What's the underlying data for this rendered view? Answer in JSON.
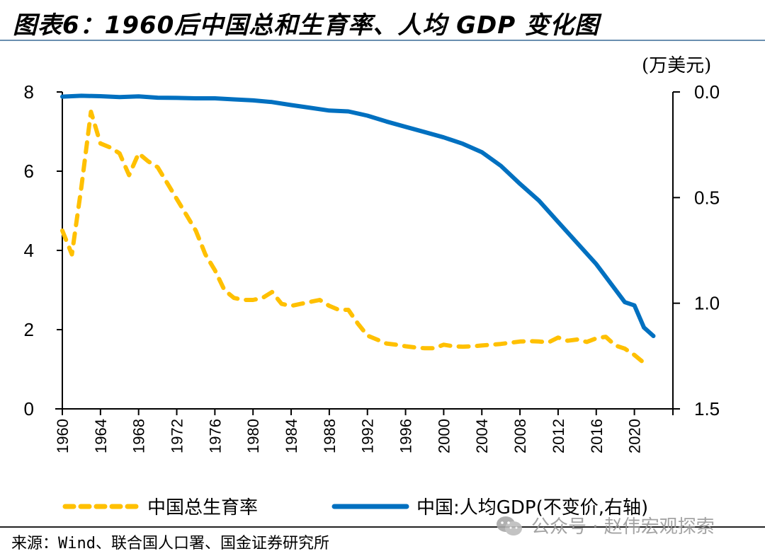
{
  "title": "图表6：1960后中国总和生育率、人均 GDP 变化图",
  "right_axis_unit": "(万美元)",
  "legend": {
    "fertility": "中国总生育率",
    "gdp": "中国:人均GDP(不变价,右轴)"
  },
  "source": "来源：Wind、联合国人口署、国金证券研究所",
  "watermark": "公众号 · 赵伟宏观探索",
  "colors": {
    "fertility": "#FFC000",
    "gdp": "#0070C0",
    "axis": "#000000"
  },
  "chart_data": {
    "type": "line",
    "title": "1960后中国总和生育率、人均 GDP 变化图",
    "xlabel": "",
    "ylabel": "",
    "y2label": "(万美元)",
    "x_ticks": [
      "1960",
      "1964",
      "1968",
      "1972",
      "1976",
      "1980",
      "1984",
      "1988",
      "1992",
      "1996",
      "2000",
      "2004",
      "2008",
      "2012",
      "2016",
      "2020"
    ],
    "y_ticks": [
      "0",
      "2",
      "4",
      "6",
      "8"
    ],
    "y2_ticks": [
      "0.0",
      "0.5",
      "1.0",
      "1.5"
    ],
    "ylim": [
      0,
      8
    ],
    "y2lim": [
      0,
      1.5
    ],
    "y2_inverted": true,
    "xlim": [
      1960,
      2023
    ],
    "grid": false,
    "legend_position": "bottom",
    "series": [
      {
        "name": "中国总生育率",
        "axis": "left",
        "style": "dashed",
        "x": [
          1960,
          1961,
          1962,
          1963,
          1964,
          1965,
          1966,
          1967,
          1968,
          1969,
          1970,
          1971,
          1972,
          1973,
          1974,
          1975,
          1976,
          1977,
          1978,
          1979,
          1980,
          1981,
          1982,
          1983,
          1984,
          1985,
          1986,
          1987,
          1988,
          1989,
          1990,
          1991,
          1992,
          1993,
          1994,
          1995,
          1996,
          1997,
          1998,
          1999,
          2000,
          2001,
          2002,
          2003,
          2004,
          2005,
          2006,
          2007,
          2008,
          2009,
          2010,
          2011,
          2012,
          2013,
          2014,
          2015,
          2016,
          2017,
          2018,
          2019,
          2020,
          2021
        ],
        "values": [
          4.5,
          3.9,
          5.6,
          7.5,
          6.7,
          6.6,
          6.45,
          5.9,
          6.45,
          6.25,
          6.1,
          5.7,
          5.3,
          4.9,
          4.5,
          3.9,
          3.5,
          3.0,
          2.8,
          2.75,
          2.75,
          2.8,
          2.95,
          2.65,
          2.6,
          2.65,
          2.7,
          2.75,
          2.6,
          2.5,
          2.5,
          2.15,
          1.85,
          1.75,
          1.65,
          1.62,
          1.58,
          1.55,
          1.53,
          1.53,
          1.62,
          1.58,
          1.57,
          1.58,
          1.6,
          1.62,
          1.64,
          1.67,
          1.7,
          1.71,
          1.7,
          1.68,
          1.8,
          1.72,
          1.75,
          1.69,
          1.78,
          1.82,
          1.6,
          1.52,
          1.36,
          1.16
        ]
      },
      {
        "name": "中国:人均GDP(不变价,右轴)",
        "axis": "right",
        "style": "solid",
        "x": [
          1960,
          1962,
          1964,
          1966,
          1968,
          1970,
          1972,
          1974,
          1976,
          1978,
          1980,
          1982,
          1984,
          1986,
          1988,
          1990,
          1992,
          1994,
          1996,
          1998,
          2000,
          2002,
          2004,
          2006,
          2008,
          2010,
          2012,
          2014,
          2016,
          2018,
          2019,
          2020,
          2021,
          2022
        ],
        "values": [
          0.022,
          0.018,
          0.02,
          0.024,
          0.021,
          0.027,
          0.028,
          0.03,
          0.03,
          0.035,
          0.04,
          0.048,
          0.062,
          0.075,
          0.088,
          0.092,
          0.112,
          0.14,
          0.165,
          0.19,
          0.215,
          0.245,
          0.285,
          0.35,
          0.435,
          0.515,
          0.615,
          0.715,
          0.815,
          0.935,
          0.995,
          1.01,
          1.115,
          1.155
        ]
      }
    ]
  }
}
